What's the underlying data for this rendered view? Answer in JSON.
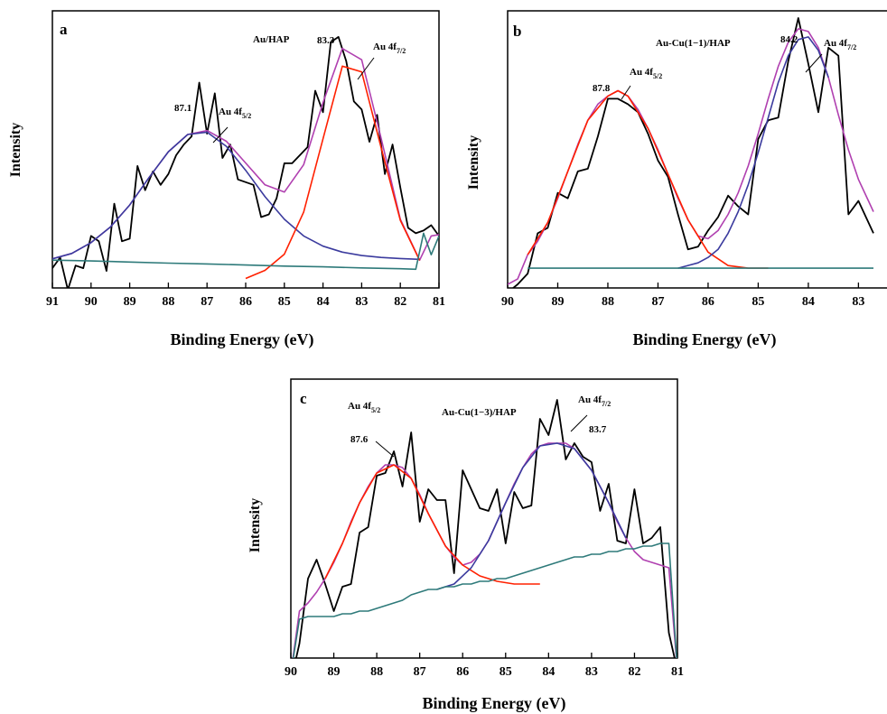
{
  "chart_data": [
    {
      "type": "line",
      "panel": "a",
      "sample": "Au/HAP",
      "xlabel": "Binding Energy (eV)",
      "ylabel": "Intensity",
      "xlim": [
        91,
        81
      ],
      "ylim": [
        0,
        100
      ],
      "x_ticks": [
        91,
        90,
        89,
        88,
        87,
        86,
        85,
        84,
        83,
        82,
        81
      ],
      "series": [
        {
          "role": "raw",
          "color": "#000000",
          "x": [
            91.0,
            90.8,
            90.6,
            90.4,
            90.2,
            90.0,
            89.8,
            89.6,
            89.4,
            89.2,
            89.0,
            88.8,
            88.6,
            88.4,
            88.2,
            88.0,
            87.8,
            87.6,
            87.4,
            87.2,
            87.0,
            86.8,
            86.6,
            86.4,
            86.2,
            86.0,
            85.8,
            85.6,
            85.4,
            85.2,
            85.0,
            84.8,
            84.6,
            84.4,
            84.2,
            84.0,
            83.8,
            83.6,
            83.4,
            83.2,
            83.0,
            82.8,
            82.6,
            82.4,
            82.2,
            82.0,
            81.8,
            81.6,
            81.4,
            81.2,
            81.0
          ],
          "y": [
            7,
            11,
            -1,
            8,
            7,
            19,
            17,
            6,
            31,
            17,
            18,
            45,
            36,
            43,
            38,
            42,
            49,
            53,
            56,
            76,
            57,
            72,
            48,
            53,
            40,
            39,
            38,
            26,
            27,
            33,
            46,
            46,
            49,
            52,
            73,
            65,
            91,
            93,
            84,
            69,
            66,
            54,
            64,
            42,
            53,
            37,
            22,
            20,
            21,
            23,
            19
          ]
        },
        {
          "role": "fit-envelope",
          "color": "#b040b0",
          "x": [
            91.0,
            90.5,
            90.0,
            89.5,
            89.0,
            88.5,
            88.0,
            87.5,
            87.0,
            86.5,
            86.0,
            85.5,
            85.0,
            84.5,
            84.0,
            83.5,
            83.0,
            82.5,
            82.0,
            81.5,
            81.2,
            81.0
          ],
          "y": [
            10.5,
            12.5,
            16.5,
            22.3,
            30.5,
            40.7,
            50.3,
            56.7,
            58.2,
            54.2,
            46.1,
            38.0,
            35.3,
            45.5,
            68.6,
            88.7,
            84.5,
            55.5,
            25.2,
            10.0,
            19,
            19.5
          ]
        },
        {
          "role": "peak-4f5/2",
          "color": "#3b3b9e",
          "x": [
            91.0,
            90.5,
            90.0,
            89.5,
            89.0,
            88.5,
            88.0,
            87.5,
            87.0,
            86.5,
            86.0,
            85.5,
            85.0,
            84.5,
            84.0,
            83.5,
            83.0,
            82.5,
            82.0,
            81.5
          ],
          "y": [
            10.5,
            12.5,
            16.5,
            22.3,
            30.5,
            40.7,
            50.3,
            56.7,
            57.6,
            52.3,
            43.4,
            33.6,
            25.2,
            19.0,
            15.2,
            13.0,
            11.7,
            11.0,
            10.6,
            10.3
          ]
        },
        {
          "role": "peak-4f7/2",
          "color": "#ff2000",
          "x": [
            86.0,
            85.5,
            85.0,
            84.5,
            84.0,
            83.5,
            83.0,
            82.5,
            82.0,
            81.5
          ],
          "y": [
            3.2,
            6.2,
            12.2,
            27.9,
            55.1,
            82.1,
            80.0,
            52.0,
            24.8,
            9.9
          ]
        },
        {
          "role": "baseline",
          "color": "#2e7a7a",
          "x": [
            91.0,
            90.0,
            89.0,
            88.0,
            87.0,
            86.0,
            85.0,
            84.0,
            83.0,
            82.0,
            81.6,
            81.4,
            81.2,
            81.0
          ],
          "y": [
            10.0,
            9.7,
            9.3,
            8.9,
            8.6,
            8.2,
            7.8,
            7.5,
            7.1,
            6.8,
            6.6,
            20,
            12,
            19
          ]
        }
      ],
      "annotations": [
        "87.1",
        "Au 4f5/2",
        "83.3",
        "Au 4f7/2"
      ]
    },
    {
      "type": "line",
      "panel": "b",
      "sample": "Au-Cu(1−1)/HAP",
      "xlabel": "Binding Energy (eV)",
      "ylabel": "Intensity",
      "xlim": [
        90,
        82.7
      ],
      "ylim": [
        0,
        100
      ],
      "x_ticks": [
        90,
        89,
        88,
        87,
        86,
        85,
        84,
        83
      ],
      "series": [
        {
          "role": "raw",
          "color": "#000000",
          "x": [
            90.0,
            89.8,
            89.6,
            89.4,
            89.2,
            89.0,
            88.8,
            88.6,
            88.4,
            88.2,
            88.0,
            87.8,
            87.6,
            87.4,
            87.2,
            87.0,
            86.8,
            86.6,
            86.4,
            86.2,
            86.0,
            85.8,
            85.6,
            85.4,
            85.2,
            85.0,
            84.8,
            84.6,
            84.4,
            84.2,
            84.0,
            83.8,
            83.6,
            83.4,
            83.2,
            83.0,
            82.7
          ],
          "y": [
            -2,
            1,
            5,
            20,
            22,
            35,
            33,
            43,
            44,
            56,
            70,
            70,
            68,
            65,
            57,
            47,
            41,
            27,
            14,
            15,
            21,
            26,
            34,
            30,
            27,
            55,
            62,
            63,
            84,
            100,
            83,
            65,
            89,
            86,
            27,
            32,
            20
          ]
        },
        {
          "role": "fit-envelope",
          "color": "#b040b0",
          "x": [
            90.0,
            89.8,
            89.6,
            89.4,
            89.2,
            89.0,
            88.8,
            88.6,
            88.4,
            88.2,
            88.0,
            87.8,
            87.6,
            87.4,
            87.2,
            87.0,
            86.8,
            86.6,
            86.4,
            86.2,
            86.0,
            85.8,
            85.6,
            85.4,
            85.2,
            85.0,
            84.8,
            84.6,
            84.4,
            84.2,
            84.0,
            83.8,
            83.6,
            83.4,
            83.2,
            83.0,
            82.8,
            82.7
          ],
          "y": [
            1,
            3,
            12,
            17,
            24,
            33,
            43,
            53,
            62,
            68,
            71,
            73,
            71,
            66,
            59,
            51,
            42,
            33,
            25,
            19,
            18,
            21,
            27,
            35,
            45,
            57,
            70,
            82,
            91,
            96,
            95,
            89,
            78,
            64,
            51,
            40,
            32,
            28
          ]
        },
        {
          "role": "peak-4f5/2",
          "color": "#ff2000",
          "x": [
            89.6,
            89.2,
            88.8,
            88.4,
            88.0,
            87.8,
            87.6,
            87.2,
            86.8,
            86.4,
            86.0,
            85.6,
            85.2,
            84.8
          ],
          "y": [
            12,
            24,
            43,
            62,
            71,
            73,
            71,
            59,
            42,
            25,
            13,
            8,
            7,
            7
          ]
        },
        {
          "role": "peak-4f7/2",
          "color": "#3b3b9e",
          "x": [
            86.6,
            86.2,
            86.0,
            85.8,
            85.6,
            85.4,
            85.2,
            85.0,
            84.8,
            84.6,
            84.4,
            84.2,
            84.0,
            83.8,
            83.6
          ],
          "y": [
            7,
            9,
            11,
            14,
            20,
            28,
            38,
            50,
            63,
            76,
            86,
            92,
            93,
            88,
            78
          ]
        },
        {
          "role": "baseline",
          "color": "#2e7a7a",
          "x": [
            89.6,
            89.0,
            88.0,
            87.0,
            86.0,
            85.0,
            84.0,
            83.0,
            82.7
          ],
          "y": [
            7,
            7,
            7,
            7,
            7,
            7,
            7,
            7,
            7
          ]
        }
      ],
      "annotations": [
        "87.8",
        "Au 4f5/2",
        "84.2",
        "Au 4f7/2"
      ]
    },
    {
      "type": "line",
      "panel": "c",
      "sample": "Au-Cu(1−3)/HAP",
      "xlabel": "Binding Energy (eV)",
      "ylabel": "Intensity",
      "xlim": [
        90,
        81
      ],
      "ylim": [
        0,
        100
      ],
      "x_ticks": [
        90,
        89,
        88,
        87,
        86,
        85,
        84,
        83,
        82,
        81
      ],
      "series": [
        {
          "role": "raw",
          "color": "#000000",
          "x": [
            90.0,
            89.8,
            89.6,
            89.4,
            89.2,
            89.0,
            88.8,
            88.6,
            88.4,
            88.2,
            88.0,
            87.8,
            87.6,
            87.4,
            87.2,
            87.0,
            86.8,
            86.6,
            86.4,
            86.2,
            86.0,
            85.8,
            85.6,
            85.4,
            85.2,
            85.0,
            84.8,
            84.6,
            84.4,
            84.2,
            84.0,
            83.8,
            83.6,
            83.4,
            83.2,
            83.0,
            82.8,
            82.6,
            82.4,
            82.2,
            82.0,
            81.8,
            81.6,
            81.4,
            81.2,
            81.0
          ],
          "y": [
            -9,
            5,
            29,
            36,
            27,
            17,
            26,
            27,
            46,
            48,
            67,
            68,
            76,
            63,
            83,
            50,
            62,
            58,
            58,
            31,
            69,
            62,
            55,
            54,
            62,
            42,
            61,
            55,
            56,
            88,
            82,
            95,
            73,
            79,
            74,
            72,
            54,
            64,
            43,
            42,
            62,
            42,
            44,
            48,
            9,
            -5
          ]
        },
        {
          "role": "fit-envelope",
          "color": "#b040b0",
          "x": [
            90.0,
            89.8,
            89.6,
            89.4,
            89.2,
            89.0,
            88.8,
            88.6,
            88.4,
            88.2,
            88.0,
            87.8,
            87.6,
            87.4,
            87.2,
            87.0,
            86.8,
            86.6,
            86.4,
            86.2,
            86.0,
            85.8,
            85.6,
            85.4,
            85.2,
            85.0,
            84.8,
            84.6,
            84.4,
            84.2,
            84.0,
            83.8,
            83.6,
            83.4,
            83.2,
            83.0,
            82.8,
            82.6,
            82.4,
            82.2,
            82.0,
            81.8,
            81.6,
            81.4,
            81.2,
            81.0
          ],
          "y": [
            -6,
            17,
            20,
            24,
            29,
            35,
            42,
            50,
            57,
            63,
            68,
            71,
            71,
            70,
            66,
            60,
            53,
            47,
            41,
            37,
            34,
            35,
            38,
            43,
            50,
            57,
            64,
            70,
            75,
            78,
            79,
            79,
            79,
            77,
            73,
            69,
            63,
            57,
            50,
            44,
            39,
            36,
            35,
            34,
            33,
            -5
          ]
        },
        {
          "role": "peak-4f5/2",
          "color": "#ff2000",
          "x": [
            89.2,
            88.8,
            88.4,
            88.0,
            87.6,
            87.2,
            86.8,
            86.4,
            86.0,
            85.6,
            85.2,
            84.8,
            84.4,
            84.2
          ],
          "y": [
            29,
            42,
            57,
            68,
            71,
            66,
            53,
            41,
            34,
            30,
            28,
            27,
            27,
            27
          ]
        },
        {
          "role": "peak-4f7/2",
          "color": "#3b3b9e",
          "x": [
            86.6,
            86.2,
            85.8,
            85.4,
            85.0,
            84.6,
            84.2,
            83.8,
            83.4,
            83.0,
            82.6,
            82.2
          ],
          "y": [
            25,
            27,
            33,
            43,
            57,
            70,
            78,
            79,
            77,
            69,
            57,
            44
          ]
        },
        {
          "role": "baseline",
          "color": "#2e7a7a",
          "x": [
            90.0,
            89.8,
            89.6,
            89.4,
            89.2,
            89.0,
            88.8,
            88.6,
            88.4,
            88.2,
            88.0,
            87.8,
            87.6,
            87.4,
            87.2,
            87.0,
            86.8,
            86.6,
            86.4,
            86.2,
            86.0,
            85.8,
            85.6,
            85.4,
            85.2,
            85.0,
            84.8,
            84.6,
            84.4,
            84.2,
            84.0,
            83.8,
            83.6,
            83.4,
            83.2,
            83.0,
            82.8,
            82.6,
            82.4,
            82.2,
            82.0,
            81.8,
            81.6,
            81.4,
            81.2,
            81.0
          ],
          "y": [
            -6,
            14,
            15,
            15,
            15,
            15,
            16,
            16,
            17,
            17,
            18,
            19,
            20,
            21,
            23,
            24,
            25,
            25,
            26,
            26,
            27,
            27,
            28,
            28,
            29,
            29,
            30,
            31,
            32,
            33,
            34,
            35,
            36,
            37,
            37,
            38,
            38,
            39,
            39,
            40,
            40,
            41,
            41,
            42,
            42,
            -5
          ]
        }
      ],
      "annotations": [
        "Au 4f5/2",
        "87.6",
        "83.7",
        "Au 4f7/2"
      ]
    }
  ],
  "panels": {
    "a": {
      "letter": "a",
      "sample": "Au/HAP",
      "peak1": "87.1",
      "peak2": "83.3",
      "label_main": "Au 4f",
      "sub1": "5/2",
      "sub2": "7/2",
      "ylabel": "Intensity",
      "xlabel": "Binding Energy (eV)",
      "ticks": [
        "91",
        "90",
        "89",
        "88",
        "87",
        "86",
        "85",
        "84",
        "83",
        "82",
        "81"
      ]
    },
    "b": {
      "letter": "b",
      "sample": "Au-Cu(1−1)/HAP",
      "peak1": "87.8",
      "peak2": "84.2",
      "label_main": "Au 4f",
      "sub1": "5/2",
      "sub2": "7/2",
      "ylabel": "Intensity",
      "xlabel": "Binding Energy (eV)",
      "ticks": [
        "90",
        "89",
        "88",
        "87",
        "86",
        "85",
        "84",
        "83"
      ]
    },
    "c": {
      "letter": "c",
      "sample": "Au-Cu(1−3)/HAP",
      "peak1": "87.6",
      "peak2": "83.7",
      "label_main": "Au 4f",
      "sub1": "5/2",
      "sub2": "7/2",
      "ylabel": "Intensity",
      "xlabel": "Binding Energy (eV)",
      "ticks": [
        "90",
        "89",
        "88",
        "87",
        "86",
        "85",
        "84",
        "83",
        "82",
        "81"
      ]
    }
  }
}
